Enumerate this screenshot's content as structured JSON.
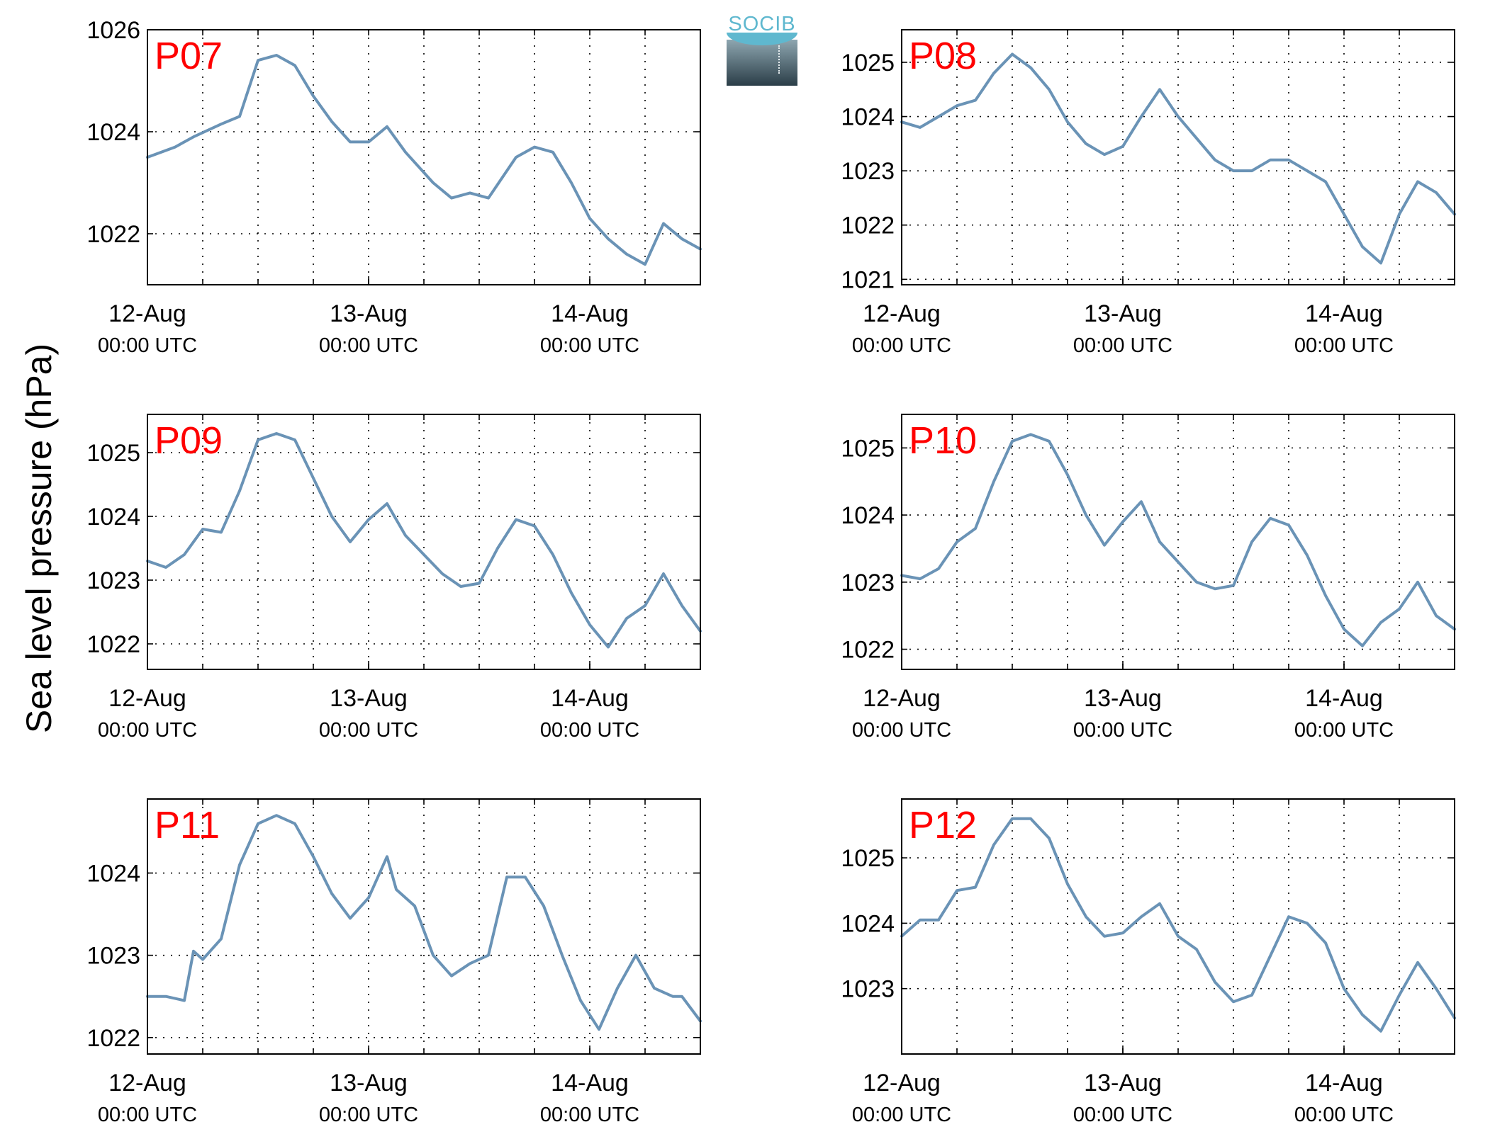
{
  "figure": {
    "ylabel": "Sea level pressure (hPa)",
    "logo_text": "SOCIB",
    "colors": {
      "line": "#6a93b6",
      "label": "#ff0000",
      "grid": "#000000"
    }
  },
  "chart_data": [
    {
      "type": "line",
      "name": "P07",
      "ylim": [
        1021,
        1026
      ],
      "yticks": [
        1022,
        1024,
        1026
      ],
      "xticks": [
        {
          "date": "12-Aug",
          "time": "00:00 UTC"
        },
        {
          "date": "13-Aug",
          "time": "00:00 UTC"
        },
        {
          "date": "14-Aug",
          "time": "00:00 UTC"
        }
      ],
      "grid": true,
      "x_hours": [
        0,
        3,
        5,
        8,
        10,
        12,
        14,
        16,
        18,
        20,
        22,
        24,
        26,
        28,
        31,
        33,
        35,
        37,
        40,
        42,
        44,
        46,
        48,
        50,
        52,
        54,
        56,
        58,
        60
      ],
      "y": [
        1023.5,
        1023.7,
        1023.9,
        1024.15,
        1024.3,
        1025.4,
        1025.5,
        1025.3,
        1024.7,
        1024.2,
        1023.8,
        1023.8,
        1024.1,
        1023.6,
        1023.0,
        1022.7,
        1022.8,
        1022.7,
        1023.5,
        1023.7,
        1023.6,
        1023.0,
        1022.3,
        1021.9,
        1021.6,
        1021.4,
        1022.2,
        1021.9,
        1021.7
      ]
    },
    {
      "type": "line",
      "name": "P08",
      "ylim": [
        1020.9,
        1025.6
      ],
      "yticks": [
        1021,
        1022,
        1023,
        1024,
        1025
      ],
      "xticks": [
        {
          "date": "12-Aug",
          "time": "00:00 UTC"
        },
        {
          "date": "13-Aug",
          "time": "00:00 UTC"
        },
        {
          "date": "14-Aug",
          "time": "00:00 UTC"
        }
      ],
      "grid": true,
      "x_hours": [
        0,
        2,
        4,
        6,
        8,
        10,
        12,
        14,
        16,
        18,
        20,
        22,
        24,
        26,
        28,
        30,
        32,
        34,
        36,
        38,
        40,
        42,
        44,
        46,
        48,
        50,
        52,
        54,
        56,
        58,
        60
      ],
      "y": [
        1023.9,
        1023.8,
        1024.0,
        1024.2,
        1024.3,
        1024.8,
        1025.15,
        1024.9,
        1024.5,
        1023.9,
        1023.5,
        1023.3,
        1023.45,
        1024.0,
        1024.5,
        1024.0,
        1023.6,
        1023.2,
        1023.0,
        1023.0,
        1023.2,
        1023.2,
        1023.0,
        1022.8,
        1022.2,
        1021.6,
        1021.3,
        1022.2,
        1022.8,
        1022.6,
        1022.2
      ]
    },
    {
      "type": "line",
      "name": "P09",
      "ylim": [
        1021.6,
        1025.6
      ],
      "yticks": [
        1022,
        1023,
        1024,
        1025
      ],
      "xticks": [
        {
          "date": "12-Aug",
          "time": "00:00 UTC"
        },
        {
          "date": "13-Aug",
          "time": "00:00 UTC"
        },
        {
          "date": "14-Aug",
          "time": "00:00 UTC"
        }
      ],
      "grid": true,
      "x_hours": [
        0,
        2,
        4,
        6,
        8,
        10,
        12,
        14,
        16,
        18,
        20,
        22,
        24,
        26,
        28,
        30,
        32,
        34,
        36,
        38,
        40,
        42,
        44,
        46,
        48,
        50,
        52,
        54,
        56,
        58,
        60
      ],
      "y": [
        1023.3,
        1023.2,
        1023.4,
        1023.8,
        1023.75,
        1024.4,
        1025.2,
        1025.3,
        1025.2,
        1024.6,
        1024.0,
        1023.6,
        1023.95,
        1024.2,
        1023.7,
        1023.4,
        1023.1,
        1022.9,
        1022.95,
        1023.5,
        1023.95,
        1023.85,
        1023.4,
        1022.8,
        1022.3,
        1021.95,
        1022.4,
        1022.6,
        1023.1,
        1022.6,
        1022.2
      ]
    },
    {
      "type": "line",
      "name": "P10",
      "ylim": [
        1021.7,
        1025.5
      ],
      "yticks": [
        1022,
        1023,
        1024,
        1025
      ],
      "xticks": [
        {
          "date": "12-Aug",
          "time": "00:00 UTC"
        },
        {
          "date": "13-Aug",
          "time": "00:00 UTC"
        },
        {
          "date": "14-Aug",
          "time": "00:00 UTC"
        }
      ],
      "grid": true,
      "x_hours": [
        0,
        2,
        4,
        6,
        8,
        10,
        12,
        14,
        16,
        18,
        20,
        22,
        24,
        26,
        28,
        30,
        32,
        34,
        36,
        38,
        40,
        42,
        44,
        46,
        48,
        50,
        52,
        54,
        56,
        58,
        60
      ],
      "y": [
        1023.1,
        1023.05,
        1023.2,
        1023.6,
        1023.8,
        1024.5,
        1025.1,
        1025.2,
        1025.1,
        1024.6,
        1024.0,
        1023.55,
        1023.9,
        1024.2,
        1023.6,
        1023.3,
        1023.0,
        1022.9,
        1022.95,
        1023.6,
        1023.95,
        1023.85,
        1023.4,
        1022.8,
        1022.3,
        1022.05,
        1022.4,
        1022.6,
        1023.0,
        1022.5,
        1022.3
      ]
    },
    {
      "type": "line",
      "name": "P11",
      "ylim": [
        1021.8,
        1024.9
      ],
      "yticks": [
        1022,
        1023,
        1024
      ],
      "xticks": [
        {
          "date": "12-Aug",
          "time": "00:00 UTC"
        },
        {
          "date": "13-Aug",
          "time": "00:00 UTC"
        },
        {
          "date": "14-Aug",
          "time": "00:00 UTC"
        }
      ],
      "grid": true,
      "x_hours": [
        0,
        2,
        4,
        5,
        6,
        8,
        10,
        12,
        14,
        16,
        18,
        20,
        22,
        24,
        26,
        27,
        29,
        31,
        33,
        35,
        37,
        39,
        41,
        43,
        45,
        47,
        49,
        51,
        53,
        55,
        57,
        58,
        60
      ],
      "y": [
        1022.5,
        1022.5,
        1022.45,
        1023.05,
        1022.95,
        1023.2,
        1024.1,
        1024.6,
        1024.7,
        1024.6,
        1024.2,
        1023.75,
        1023.45,
        1023.7,
        1024.2,
        1023.8,
        1023.6,
        1023.0,
        1022.75,
        1022.9,
        1023.0,
        1023.95,
        1023.95,
        1023.6,
        1023.0,
        1022.45,
        1022.1,
        1022.6,
        1023.0,
        1022.6,
        1022.5,
        1022.5,
        1022.2
      ]
    },
    {
      "type": "line",
      "name": "P12",
      "ylim": [
        1022.0,
        1025.9
      ],
      "yticks": [
        1023,
        1024,
        1025
      ],
      "xticks": [
        {
          "date": "12-Aug",
          "time": "00:00 UTC"
        },
        {
          "date": "13-Aug",
          "time": "00:00 UTC"
        },
        {
          "date": "14-Aug",
          "time": "00:00 UTC"
        }
      ],
      "grid": true,
      "x_hours": [
        0,
        2,
        4,
        6,
        8,
        10,
        12,
        14,
        16,
        18,
        20,
        22,
        24,
        26,
        28,
        30,
        32,
        34,
        36,
        38,
        40,
        42,
        44,
        46,
        48,
        50,
        52,
        54,
        56,
        58,
        60
      ],
      "y": [
        1023.8,
        1024.05,
        1024.05,
        1024.5,
        1024.55,
        1025.2,
        1025.6,
        1025.6,
        1025.3,
        1024.6,
        1024.1,
        1023.8,
        1023.85,
        1024.1,
        1024.3,
        1023.8,
        1023.6,
        1023.1,
        1022.8,
        1022.9,
        1023.5,
        1024.1,
        1024.0,
        1023.7,
        1023.0,
        1022.6,
        1022.35,
        1022.9,
        1023.4,
        1023.0,
        1022.55
      ]
    }
  ]
}
